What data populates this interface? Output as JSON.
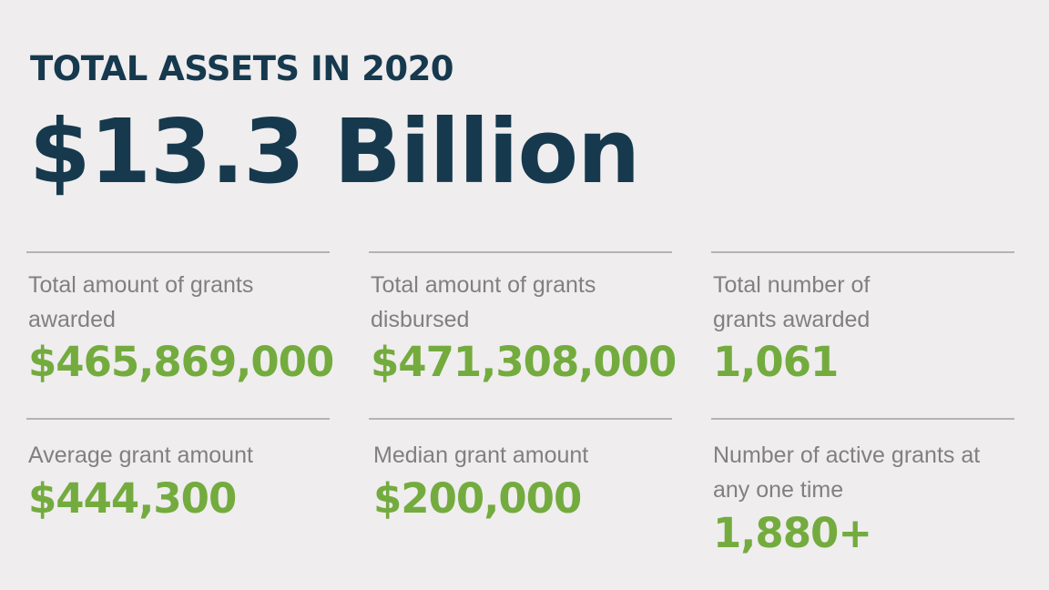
{
  "header": {
    "title": "TOTAL ASSETS IN 2020",
    "total_assets": "$13.3 Billion"
  },
  "stats": [
    {
      "label": "Total amount of grants awarded",
      "value": "$465,869,000"
    },
    {
      "label": "Total amount of grants disbursed",
      "value": "$471,308,000"
    },
    {
      "label": "Total number of grants awarded",
      "value": "1,061"
    },
    {
      "label": "Average grant amount",
      "value": "$444,300"
    },
    {
      "label": "Median grant amount",
      "value": "$200,000"
    },
    {
      "label": "Number of active grants at any one time",
      "value": "1,880+"
    }
  ],
  "colors": {
    "background": "#efedee",
    "heading": "#16394e",
    "value": "#74ab3e",
    "label": "#808080",
    "rule": "#b4b4b4"
  }
}
